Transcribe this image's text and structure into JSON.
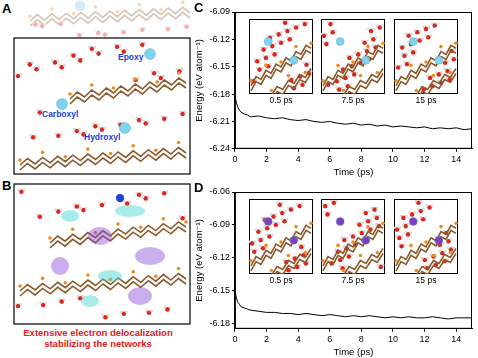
{
  "panels": [
    {
      "panel": "A",
      "annotations": [
        "Epoxy",
        "Carboxyl",
        "Hydroxyl"
      ]
    },
    {
      "panel": "B",
      "caption": "Extensive electron delocalization stabilizing the networks"
    }
  ],
  "chart_data": [
    {
      "type": "line",
      "panel": "C",
      "x_label": "Time (ps)",
      "y_label": "Energy (eV atom⁻¹)",
      "annotations": [
        "0.5 ps",
        "7.5 ps",
        "15 ps"
      ],
      "color": "#000000",
      "line_style": "solid",
      "marker": "none",
      "grid": false,
      "xlim": [
        0,
        15
      ],
      "xticks": [
        0,
        2,
        4,
        6,
        8,
        10,
        12,
        14
      ],
      "ylim": [
        -6.24,
        -6.09
      ],
      "yticks": [
        -6.24,
        -6.21,
        -6.18,
        -6.15,
        -6.12,
        -6.09
      ],
      "x": [
        0,
        0.1,
        0.2,
        0.3,
        0.4,
        0.6,
        0.8,
        1.0,
        1.5,
        2.0,
        2.5,
        3.0,
        3.5,
        4.0,
        4.5,
        5.0,
        5.5,
        6.0,
        6.5,
        7.0,
        7.5,
        8.0,
        8.5,
        9.0,
        9.5,
        10.0,
        10.5,
        11.0,
        11.5,
        12.0,
        12.5,
        13.0,
        13.5,
        14.0,
        14.5,
        15.0
      ],
      "values": [
        -6.182,
        -6.19,
        -6.195,
        -6.198,
        -6.2,
        -6.202,
        -6.203,
        -6.205,
        -6.204,
        -6.206,
        -6.207,
        -6.206,
        -6.208,
        -6.209,
        -6.208,
        -6.21,
        -6.211,
        -6.21,
        -6.212,
        -6.213,
        -6.212,
        -6.214,
        -6.213,
        -6.215,
        -6.214,
        -6.216,
        -6.215,
        -6.216,
        -6.217,
        -6.216,
        -6.218,
        -6.217,
        -6.218,
        -6.217,
        -6.219,
        -6.218
      ]
    },
    {
      "type": "line",
      "panel": "D",
      "x_label": "Time (ps)",
      "y_label": "Energy (eV atom⁻¹)",
      "annotations": [
        "0.5 ps",
        "7.5 ps",
        "15 ps"
      ],
      "color": "#000000",
      "line_style": "solid",
      "marker": "none",
      "grid": false,
      "xlim": [
        0,
        15
      ],
      "xticks": [
        0,
        2,
        4,
        6,
        8,
        10,
        12,
        14
      ],
      "ylim": [
        -6.185,
        -6.06
      ],
      "yticks": [
        -6.18,
        -6.15,
        -6.12,
        -6.09,
        -6.06
      ],
      "x": [
        0,
        0.1,
        0.2,
        0.3,
        0.4,
        0.6,
        0.8,
        1.0,
        1.5,
        2.0,
        2.5,
        3.0,
        3.5,
        4.0,
        4.5,
        5.0,
        5.5,
        6.0,
        6.5,
        7.0,
        7.5,
        8.0,
        8.5,
        9.0,
        9.5,
        10.0,
        10.5,
        11.0,
        11.5,
        12.0,
        12.5,
        13.0,
        13.5,
        14.0,
        14.5,
        15.0
      ],
      "values": [
        -6.15,
        -6.157,
        -6.161,
        -6.163,
        -6.165,
        -6.166,
        -6.167,
        -6.168,
        -6.169,
        -6.17,
        -6.17,
        -6.171,
        -6.171,
        -6.172,
        -6.171,
        -6.172,
        -6.173,
        -6.172,
        -6.173,
        -6.174,
        -6.173,
        -6.174,
        -6.173,
        -6.174,
        -6.175,
        -6.174,
        -6.175,
        -6.174,
        -6.175,
        -6.175,
        -6.174,
        -6.175,
        -6.176,
        -6.175,
        -6.175,
        -6.175
      ]
    }
  ]
}
